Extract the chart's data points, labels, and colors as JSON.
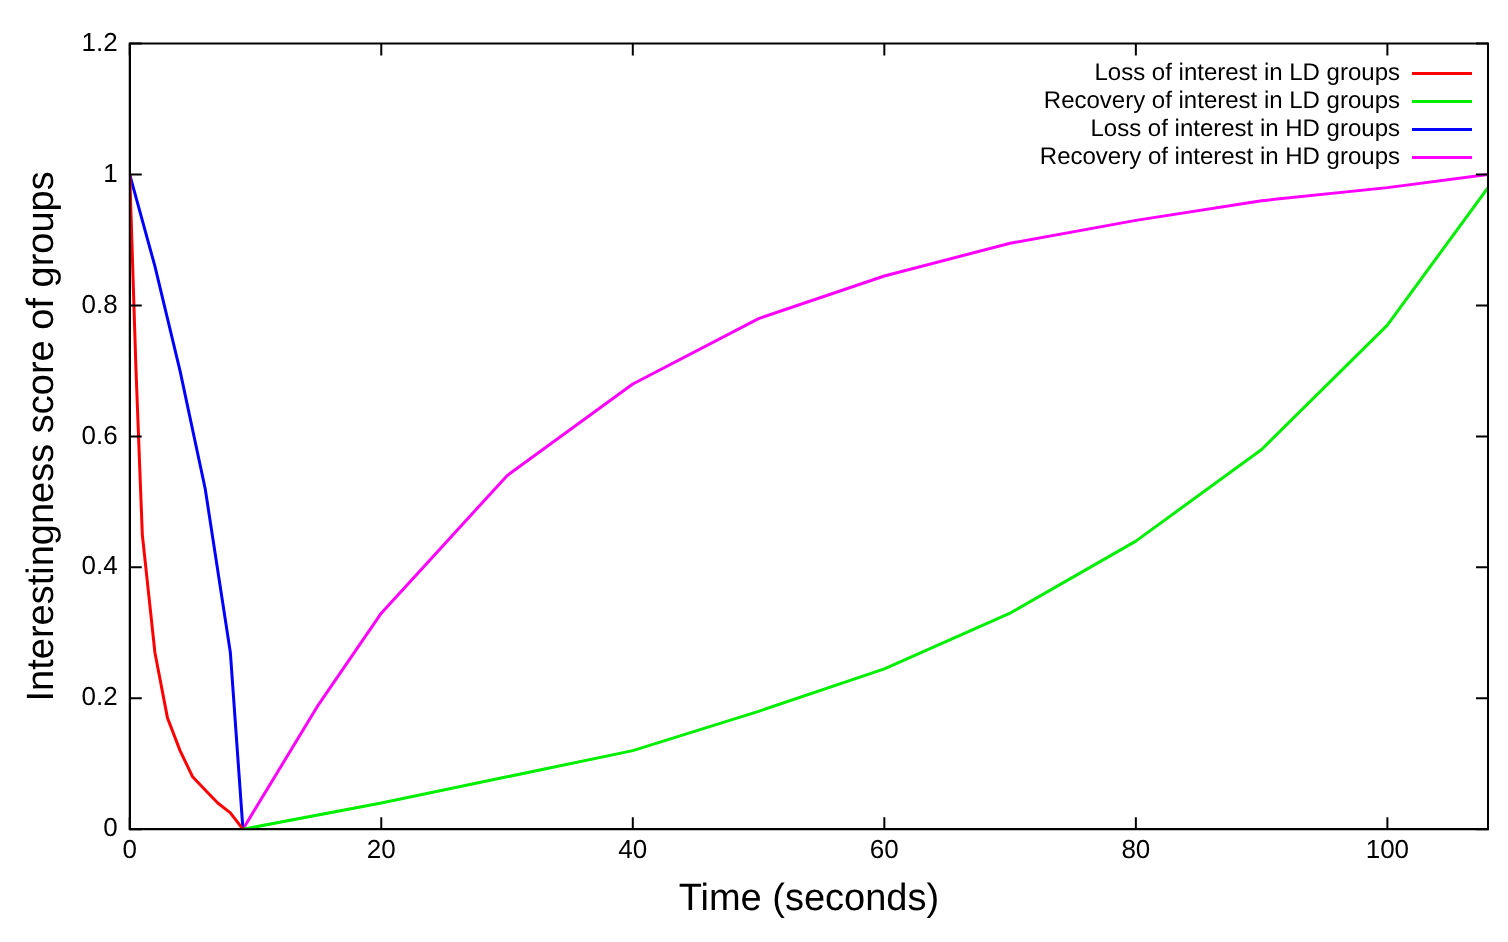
{
  "chart_data": {
    "type": "line",
    "xlabel": "Time (seconds)",
    "ylabel": "Interestingness score of groups",
    "xlim": [
      0,
      108
    ],
    "xticks": [
      0,
      20,
      40,
      60,
      80,
      100
    ],
    "ylim": [
      0,
      1.2
    ],
    "yticks": [
      0,
      0.2,
      0.4,
      0.6,
      0.8,
      1,
      1.2
    ],
    "grid": false,
    "legend": "top right",
    "marker": "none",
    "line_style": "solid",
    "series": [
      {
        "name": "Loss of interest in LD groups",
        "color": "#ff0000",
        "x": [
          0,
          0.5,
          1,
          2,
          3,
          4,
          5,
          6,
          7,
          8,
          9
        ],
        "values": [
          1,
          0.7,
          0.45,
          0.27,
          0.17,
          0.12,
          0.08,
          0.06,
          0.04,
          0.025,
          0
        ]
      },
      {
        "name": "Recovery of interest in LD groups",
        "color": "#00ee00",
        "x": [
          9,
          20,
          30,
          40,
          50,
          60,
          70,
          80,
          90,
          100,
          108
        ],
        "values": [
          0,
          0.04,
          0.08,
          0.12,
          0.18,
          0.245,
          0.33,
          0.44,
          0.58,
          0.77,
          0.98
        ]
      },
      {
        "name": "Loss of interest in HD groups",
        "color": "#0000ff",
        "x": [
          0,
          2,
          4,
          6,
          8,
          9
        ],
        "values": [
          1,
          0.86,
          0.7,
          0.52,
          0.27,
          0
        ]
      },
      {
        "name": "Recovery of interest in HD groups",
        "color": "#ff00ff",
        "x": [
          9,
          15,
          20,
          30,
          40,
          50,
          60,
          70,
          80,
          90,
          100,
          108
        ],
        "values": [
          0,
          0.19,
          0.33,
          0.54,
          0.68,
          0.78,
          0.845,
          0.895,
          0.93,
          0.96,
          0.98,
          1.0
        ]
      }
    ]
  }
}
